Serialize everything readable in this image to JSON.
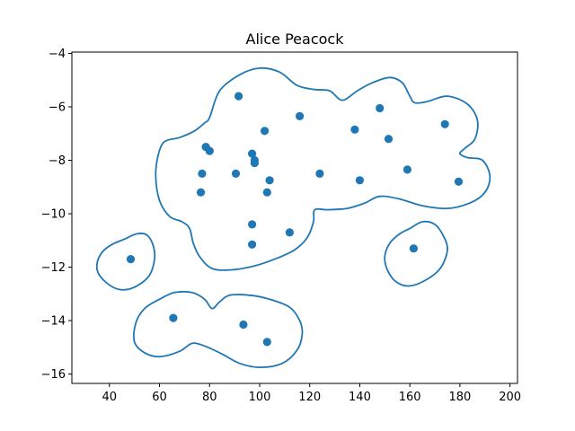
{
  "chart_data": {
    "type": "scatter",
    "title": "Alice Peacock",
    "xlabel": "",
    "ylabel": "",
    "xlim": [
      25,
      203
    ],
    "ylim": [
      -16.35,
      -3.95
    ],
    "xticks": [
      40,
      60,
      80,
      100,
      120,
      140,
      160,
      180,
      200
    ],
    "yticks": [
      -16,
      -14,
      -12,
      -10,
      -8,
      -6,
      -4
    ],
    "grid": false,
    "legend": "none",
    "color": "#1f77b4",
    "points": [
      {
        "x": 91.6,
        "y": -5.6
      },
      {
        "x": 148.0,
        "y": -6.05
      },
      {
        "x": 116.0,
        "y": -6.35
      },
      {
        "x": 174.0,
        "y": -6.65
      },
      {
        "x": 138.0,
        "y": -6.85
      },
      {
        "x": 102.0,
        "y": -6.9
      },
      {
        "x": 151.5,
        "y": -7.2
      },
      {
        "x": 78.5,
        "y": -7.5
      },
      {
        "x": 80.0,
        "y": -7.65
      },
      {
        "x": 97.0,
        "y": -7.75
      },
      {
        "x": 98.0,
        "y": -8.0
      },
      {
        "x": 98.0,
        "y": -8.1
      },
      {
        "x": 159.0,
        "y": -8.35
      },
      {
        "x": 77.0,
        "y": -8.5
      },
      {
        "x": 90.5,
        "y": -8.5
      },
      {
        "x": 124.0,
        "y": -8.5
      },
      {
        "x": 104.0,
        "y": -8.75
      },
      {
        "x": 140.0,
        "y": -8.75
      },
      {
        "x": 179.5,
        "y": -8.8
      },
      {
        "x": 76.5,
        "y": -9.2
      },
      {
        "x": 103.0,
        "y": -9.2
      },
      {
        "x": 97.0,
        "y": -10.4
      },
      {
        "x": 112.0,
        "y": -10.7
      },
      {
        "x": 97.0,
        "y": -11.15
      },
      {
        "x": 161.5,
        "y": -11.3
      },
      {
        "x": 48.5,
        "y": -11.7
      },
      {
        "x": 65.5,
        "y": -13.9
      },
      {
        "x": 93.5,
        "y": -14.15
      },
      {
        "x": 103.0,
        "y": -14.8
      }
    ],
    "contours": [
      {
        "name": "main-region",
        "points": [
          [
            80.0,
            -6.4
          ],
          [
            84.0,
            -5.4
          ],
          [
            92.0,
            -4.8
          ],
          [
            100.0,
            -4.55
          ],
          [
            108.0,
            -4.7
          ],
          [
            115.0,
            -5.2
          ],
          [
            122.0,
            -5.35
          ],
          [
            128.0,
            -5.4
          ],
          [
            133.0,
            -5.75
          ],
          [
            139.0,
            -5.4
          ],
          [
            145.0,
            -5.1
          ],
          [
            152.0,
            -4.9
          ],
          [
            157.0,
            -5.1
          ],
          [
            160.0,
            -5.6
          ],
          [
            162.0,
            -5.85
          ],
          [
            167.0,
            -5.8
          ],
          [
            175.0,
            -5.6
          ],
          [
            183.0,
            -5.9
          ],
          [
            187.0,
            -6.5
          ],
          [
            186.0,
            -7.2
          ],
          [
            182.0,
            -7.55
          ],
          [
            180.0,
            -7.75
          ],
          [
            183.0,
            -7.9
          ],
          [
            189.0,
            -8.0
          ],
          [
            192.0,
            -8.6
          ],
          [
            190.0,
            -9.2
          ],
          [
            184.0,
            -9.6
          ],
          [
            175.0,
            -9.8
          ],
          [
            165.0,
            -9.7
          ],
          [
            156.0,
            -9.45
          ],
          [
            148.0,
            -9.35
          ],
          [
            142.0,
            -9.6
          ],
          [
            135.0,
            -9.8
          ],
          [
            127.0,
            -9.85
          ],
          [
            122.0,
            -9.85
          ],
          [
            121.5,
            -10.3
          ],
          [
            119.0,
            -10.9
          ],
          [
            114.0,
            -11.35
          ],
          [
            106.0,
            -11.7
          ],
          [
            98.0,
            -11.95
          ],
          [
            89.0,
            -12.1
          ],
          [
            81.0,
            -12.05
          ],
          [
            76.0,
            -11.6
          ],
          [
            73.5,
            -11.1
          ],
          [
            72.0,
            -10.55
          ],
          [
            69.0,
            -10.3
          ],
          [
            64.0,
            -10.1
          ],
          [
            60.0,
            -9.5
          ],
          [
            58.5,
            -8.6
          ],
          [
            59.5,
            -7.8
          ],
          [
            62.0,
            -7.3
          ],
          [
            68.0,
            -7.15
          ],
          [
            74.0,
            -6.9
          ],
          [
            78.0,
            -6.6
          ]
        ]
      },
      {
        "name": "left-region",
        "points": [
          [
            46.0,
            -10.95
          ],
          [
            51.0,
            -10.75
          ],
          [
            55.0,
            -10.8
          ],
          [
            57.5,
            -11.2
          ],
          [
            58.0,
            -11.7
          ],
          [
            56.0,
            -12.3
          ],
          [
            51.0,
            -12.7
          ],
          [
            45.5,
            -12.85
          ],
          [
            40.5,
            -12.7
          ],
          [
            36.0,
            -12.3
          ],
          [
            35.0,
            -11.9
          ],
          [
            37.0,
            -11.45
          ],
          [
            41.0,
            -11.15
          ]
        ]
      },
      {
        "name": "right-region",
        "points": [
          [
            160.0,
            -10.55
          ],
          [
            165.0,
            -10.3
          ],
          [
            170.0,
            -10.4
          ],
          [
            173.5,
            -10.85
          ],
          [
            175.0,
            -11.35
          ],
          [
            172.5,
            -12.0
          ],
          [
            167.0,
            -12.45
          ],
          [
            160.0,
            -12.7
          ],
          [
            154.5,
            -12.55
          ],
          [
            151.0,
            -12.1
          ],
          [
            150.0,
            -11.6
          ],
          [
            152.0,
            -11.1
          ],
          [
            156.0,
            -10.75
          ]
        ]
      },
      {
        "name": "bottom-region",
        "points": [
          [
            60.0,
            -13.2
          ],
          [
            66.0,
            -12.95
          ],
          [
            73.0,
            -12.95
          ],
          [
            78.0,
            -13.2
          ],
          [
            81.0,
            -13.55
          ],
          [
            84.0,
            -13.3
          ],
          [
            88.0,
            -13.05
          ],
          [
            96.0,
            -13.05
          ],
          [
            104.0,
            -13.2
          ],
          [
            112.0,
            -13.5
          ],
          [
            116.0,
            -14.0
          ],
          [
            117.0,
            -14.5
          ],
          [
            115.0,
            -15.1
          ],
          [
            109.0,
            -15.6
          ],
          [
            100.0,
            -15.75
          ],
          [
            92.0,
            -15.6
          ],
          [
            85.0,
            -15.25
          ],
          [
            78.0,
            -14.95
          ],
          [
            73.0,
            -14.85
          ],
          [
            68.0,
            -15.15
          ],
          [
            60.0,
            -15.35
          ],
          [
            54.0,
            -15.2
          ],
          [
            50.0,
            -14.8
          ],
          [
            50.5,
            -14.1
          ],
          [
            54.0,
            -13.55
          ]
        ]
      }
    ]
  }
}
